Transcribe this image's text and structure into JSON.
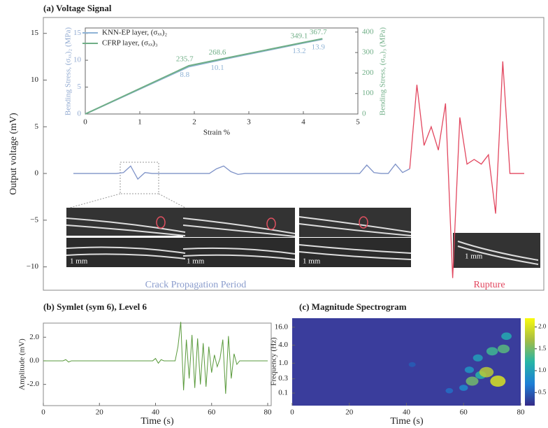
{
  "chart_data": [
    {
      "type": "line",
      "title": "(a) Voltage Signal",
      "y_label": "Output voltage (mV)",
      "ylim": [
        -12.5,
        16.7
      ],
      "yticks": [
        15,
        10,
        5,
        0,
        {
          "value": -5,
          "label": "−5"
        },
        {
          "value": -10,
          "label": "−10"
        }
      ],
      "series": [
        {
          "name": "Crack Propagation Period",
          "color": "#7f93c8",
          "values": [
            0,
            0,
            0,
            0,
            0,
            0,
            0,
            0.1,
            0.8,
            -0.6,
            0.1,
            0,
            0,
            0,
            0,
            0,
            0,
            0,
            0,
            0,
            0.5,
            0.8,
            0.2,
            -0.1,
            0,
            0,
            0,
            0,
            0,
            0,
            0,
            0,
            0,
            0,
            0,
            0,
            0,
            0,
            0,
            0,
            0,
            0.9,
            0.1,
            0,
            0,
            1.0,
            0.1,
            0.5,
            null,
            null,
            null,
            null,
            null,
            null,
            null,
            null,
            null,
            null,
            null,
            null,
            null,
            null,
            null,
            null
          ]
        },
        {
          "name": "Rupture",
          "color": "#e2475f",
          "values": [
            null,
            null,
            null,
            null,
            null,
            null,
            null,
            null,
            null,
            null,
            null,
            null,
            null,
            null,
            null,
            null,
            null,
            null,
            null,
            null,
            null,
            null,
            null,
            null,
            null,
            null,
            null,
            null,
            null,
            null,
            null,
            null,
            null,
            null,
            null,
            null,
            null,
            null,
            null,
            null,
            null,
            null,
            null,
            null,
            null,
            null,
            null,
            0.5,
            9.5,
            3,
            5,
            2.5,
            7.5,
            -11.2,
            6,
            1,
            1.5,
            1,
            2,
            -4.3,
            12,
            0,
            0,
            0
          ]
        }
      ],
      "image_labels": [
        "1 mm",
        "1 mm",
        "1 mm",
        "1 mm"
      ]
    },
    {
      "type": "line",
      "x_label": "Strain %",
      "y_label": "Bending Stress, (σₓₓ)₂ (MPa)",
      "y2_label": "Bending Stress, (σₓₓ)₃ (MPa)",
      "x": [
        0,
        1.9,
        2.5,
        4,
        4.35
      ],
      "xlim": [
        0,
        5
      ],
      "xticks": [
        0,
        1,
        2,
        3,
        4,
        5
      ],
      "ylim": [
        0,
        16
      ],
      "yticks": [
        0,
        5,
        10,
        15
      ],
      "y2lim": [
        0,
        420
      ],
      "y2ticks": [
        0,
        100,
        200,
        300,
        400
      ],
      "series": [
        {
          "name": "KNN-EP layer, (σₓₓ)₂",
          "color": "#8fb3d6",
          "values": [
            0,
            8.8,
            10.1,
            13.2,
            13.9
          ]
        },
        {
          "name": "CFRP layer, (σₓₓ)₃",
          "color": "#6fae86",
          "axis": "y2",
          "values": [
            0,
            235.7,
            268.6,
            349.1,
            367.7
          ]
        }
      ]
    },
    {
      "type": "line",
      "title": "(b) Symlet (sym 6), Level 6",
      "x_label": "Time (s)",
      "y_label": "Amplitude (mV)",
      "color": "#5a9a3c",
      "xlim": [
        0,
        80
      ],
      "xticks": [
        0,
        20,
        40,
        60,
        80
      ],
      "ylim": [
        -3.8,
        3.2
      ],
      "yticks": [
        {
          "value": 2,
          "label": "2.0"
        },
        {
          "value": 0,
          "label": "0.0"
        },
        {
          "value": -2,
          "label": "-2.0"
        }
      ],
      "x": [
        0,
        1,
        2,
        3,
        4,
        5,
        6,
        7,
        8,
        9,
        10,
        11,
        12,
        13,
        14,
        15,
        16,
        17,
        18,
        19,
        20,
        21,
        22,
        23,
        24,
        25,
        26,
        27,
        28,
        29,
        30,
        31,
        32,
        33,
        34,
        35,
        36,
        37,
        38,
        39,
        40,
        41,
        42,
        43,
        44,
        45,
        46,
        47,
        48,
        49,
        50,
        51,
        52,
        53,
        54,
        55,
        56,
        57,
        58,
        59,
        60,
        61,
        62,
        63,
        64,
        65,
        66,
        67,
        68,
        69,
        70,
        71,
        72,
        73,
        74,
        75,
        76,
        77,
        78,
        79,
        80
      ],
      "values": [
        0,
        0,
        0,
        0,
        0,
        0,
        0,
        0,
        0.1,
        -0.1,
        0,
        0,
        0,
        0,
        0,
        0,
        0,
        0,
        0,
        0,
        0,
        0,
        0,
        0,
        0,
        0,
        0,
        0,
        0,
        0,
        0,
        0,
        0,
        0,
        0,
        0,
        0,
        0,
        0,
        0,
        0.2,
        -0.2,
        0.1,
        0,
        0,
        0,
        0,
        0,
        1.2,
        3.3,
        -2.5,
        1.8,
        -1.5,
        2.2,
        -2.3,
        1.9,
        -2.0,
        1.5,
        -2.2,
        1.2,
        -1.0,
        0.5,
        -0.5,
        0.2,
        1.8,
        -2.8,
        2.1,
        -1.5,
        0.6,
        -0.3,
        0,
        0,
        0,
        0,
        0,
        0,
        0,
        0,
        0,
        0,
        0
      ]
    },
    {
      "type": "heatmap",
      "title": "(c) Magnitude Spectrogram",
      "x_label": "Time (s)",
      "y_label": "Frequency (Hz)",
      "xlim": [
        0,
        80
      ],
      "xticks": [
        0,
        20,
        40,
        60,
        80
      ],
      "ylim": [
        0.038,
        32
      ],
      "log_y": true,
      "yticks": [
        {
          "value": 16,
          "label": "16.0"
        },
        {
          "value": 4,
          "label": "4.0"
        },
        {
          "value": 1,
          "label": "1.0"
        },
        {
          "value": 0.3,
          "label": "0.3"
        },
        {
          "value": 0.1,
          "label": "0.1"
        }
      ],
      "x": [
        42,
        55,
        60,
        63,
        65,
        66,
        68,
        70,
        72,
        74,
        75,
        62
      ],
      "y": [
        0.9,
        0.12,
        0.15,
        0.25,
        1.5,
        0.4,
        0.5,
        2.5,
        0.25,
        3,
        8,
        0.6
      ],
      "values": [
        0.5,
        0.6,
        0.8,
        1.5,
        1.0,
        1.2,
        1.8,
        1.3,
        2.0,
        1.4,
        1.1,
        0.9
      ],
      "zlim": [
        0.2,
        2.2
      ],
      "colorbar_ticks": [
        {
          "value": 0.5,
          "label": "0.5"
        },
        {
          "value": 1,
          "label": "1.0"
        },
        {
          "value": 1.5,
          "label": "1.5"
        },
        {
          "value": 2,
          "label": "2.0"
        }
      ],
      "colormap": [
        "#352a87",
        "#1e7fd6",
        "#26b5a6",
        "#a6bd43",
        "#f9fb0e"
      ]
    }
  ]
}
